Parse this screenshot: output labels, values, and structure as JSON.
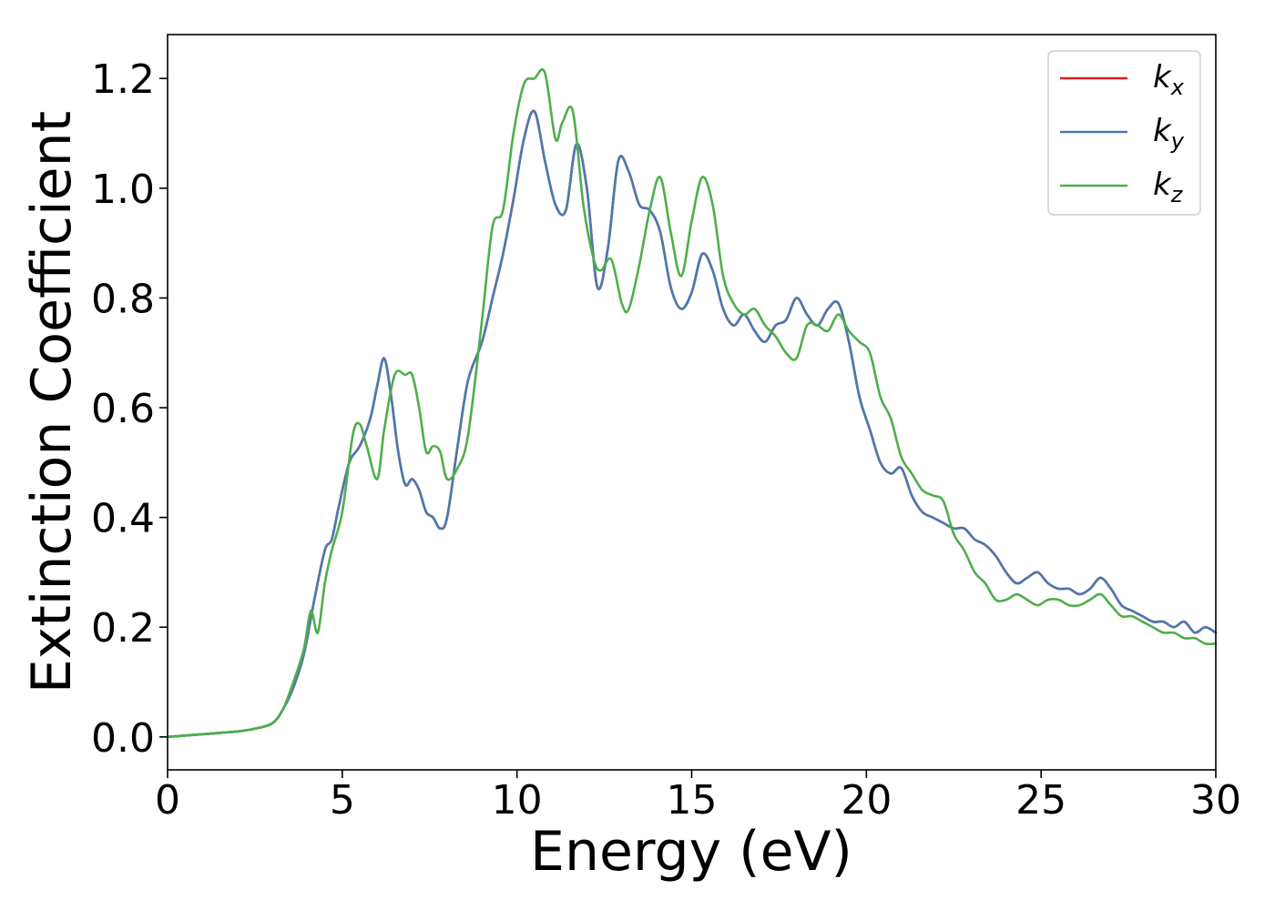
{
  "chart_data": {
    "type": "line",
    "title": "",
    "xlabel": "Energy (eV)",
    "ylabel": "Extinction Coefficient",
    "xlim": [
      0,
      30
    ],
    "ylim": [
      -0.06,
      1.28
    ],
    "xticks": [
      0,
      5,
      10,
      15,
      20,
      25,
      30
    ],
    "xtick_labels": [
      "0",
      "5",
      "10",
      "15",
      "20",
      "25",
      "30"
    ],
    "yticks": [
      0.0,
      0.2,
      0.4,
      0.6,
      0.8,
      1.0,
      1.2
    ],
    "ytick_labels": [
      "0.0",
      "0.2",
      "0.4",
      "0.6",
      "0.8",
      "1.0",
      "1.2"
    ],
    "grid": false,
    "legend_position": "top-right",
    "series": [
      {
        "name": "k_x",
        "label_base": "k",
        "label_sub": "x",
        "color": "#e41a1c",
        "x": [
          0,
          1,
          2,
          2.5,
          3,
          3.3,
          3.6,
          3.9,
          4.2,
          4.5,
          4.7,
          4.9,
          5.2,
          5.5,
          5.8,
          6.0,
          6.2,
          6.4,
          6.6,
          6.8,
          7.0,
          7.2,
          7.4,
          7.6,
          7.8,
          8.0,
          8.3,
          8.6,
          9.0,
          9.3,
          9.6,
          9.9,
          10.2,
          10.5,
          10.8,
          11.1,
          11.4,
          11.7,
          12.0,
          12.3,
          12.6,
          12.9,
          13.2,
          13.5,
          13.8,
          14.1,
          14.4,
          14.7,
          15.0,
          15.3,
          15.6,
          15.9,
          16.2,
          16.5,
          16.8,
          17.1,
          17.4,
          17.7,
          18.0,
          18.3,
          18.6,
          18.9,
          19.2,
          19.5,
          19.8,
          20.1,
          20.4,
          20.7,
          21.0,
          21.3,
          21.6,
          21.9,
          22.2,
          22.5,
          22.8,
          23.1,
          23.4,
          23.7,
          24.0,
          24.3,
          24.6,
          24.9,
          25.2,
          25.5,
          25.8,
          26.1,
          26.4,
          26.7,
          27.0,
          27.3,
          27.6,
          27.9,
          28.2,
          28.5,
          28.8,
          29.1,
          29.4,
          29.7,
          30.0
        ],
        "y": [
          0.0,
          0.005,
          0.01,
          0.015,
          0.025,
          0.05,
          0.09,
          0.15,
          0.25,
          0.34,
          0.36,
          0.42,
          0.5,
          0.53,
          0.58,
          0.64,
          0.69,
          0.62,
          0.52,
          0.46,
          0.47,
          0.45,
          0.41,
          0.4,
          0.38,
          0.4,
          0.53,
          0.65,
          0.72,
          0.8,
          0.88,
          0.98,
          1.09,
          1.14,
          1.05,
          0.97,
          0.96,
          1.08,
          1.0,
          0.82,
          0.89,
          1.05,
          1.03,
          0.97,
          0.96,
          0.92,
          0.82,
          0.78,
          0.81,
          0.88,
          0.85,
          0.78,
          0.75,
          0.77,
          0.74,
          0.72,
          0.75,
          0.76,
          0.8,
          0.77,
          0.75,
          0.78,
          0.79,
          0.72,
          0.62,
          0.56,
          0.5,
          0.48,
          0.49,
          0.44,
          0.41,
          0.4,
          0.39,
          0.38,
          0.38,
          0.36,
          0.35,
          0.33,
          0.3,
          0.28,
          0.29,
          0.3,
          0.28,
          0.27,
          0.27,
          0.26,
          0.27,
          0.29,
          0.27,
          0.24,
          0.23,
          0.22,
          0.21,
          0.21,
          0.2,
          0.21,
          0.19,
          0.2,
          0.19
        ]
      },
      {
        "name": "k_y",
        "label_base": "k",
        "label_sub": "y",
        "color": "#4a7ab0",
        "x": [
          0,
          1,
          2,
          2.5,
          3,
          3.3,
          3.6,
          3.9,
          4.2,
          4.5,
          4.7,
          4.9,
          5.2,
          5.5,
          5.8,
          6.0,
          6.2,
          6.4,
          6.6,
          6.8,
          7.0,
          7.2,
          7.4,
          7.6,
          7.8,
          8.0,
          8.3,
          8.6,
          9.0,
          9.3,
          9.6,
          9.9,
          10.2,
          10.5,
          10.8,
          11.1,
          11.4,
          11.7,
          12.0,
          12.3,
          12.6,
          12.9,
          13.2,
          13.5,
          13.8,
          14.1,
          14.4,
          14.7,
          15.0,
          15.3,
          15.6,
          15.9,
          16.2,
          16.5,
          16.8,
          17.1,
          17.4,
          17.7,
          18.0,
          18.3,
          18.6,
          18.9,
          19.2,
          19.5,
          19.8,
          20.1,
          20.4,
          20.7,
          21.0,
          21.3,
          21.6,
          21.9,
          22.2,
          22.5,
          22.8,
          23.1,
          23.4,
          23.7,
          24.0,
          24.3,
          24.6,
          24.9,
          25.2,
          25.5,
          25.8,
          26.1,
          26.4,
          26.7,
          27.0,
          27.3,
          27.6,
          27.9,
          28.2,
          28.5,
          28.8,
          29.1,
          29.4,
          29.7,
          30.0
        ],
        "y": [
          0.0,
          0.005,
          0.01,
          0.015,
          0.025,
          0.05,
          0.09,
          0.15,
          0.25,
          0.34,
          0.36,
          0.42,
          0.5,
          0.53,
          0.58,
          0.64,
          0.69,
          0.62,
          0.52,
          0.46,
          0.47,
          0.45,
          0.41,
          0.4,
          0.38,
          0.4,
          0.53,
          0.65,
          0.72,
          0.8,
          0.88,
          0.98,
          1.09,
          1.14,
          1.05,
          0.97,
          0.96,
          1.08,
          1.0,
          0.82,
          0.89,
          1.05,
          1.03,
          0.97,
          0.96,
          0.92,
          0.82,
          0.78,
          0.81,
          0.88,
          0.85,
          0.78,
          0.75,
          0.77,
          0.74,
          0.72,
          0.75,
          0.76,
          0.8,
          0.77,
          0.75,
          0.78,
          0.79,
          0.72,
          0.62,
          0.56,
          0.5,
          0.48,
          0.49,
          0.44,
          0.41,
          0.4,
          0.39,
          0.38,
          0.38,
          0.36,
          0.35,
          0.33,
          0.3,
          0.28,
          0.29,
          0.3,
          0.28,
          0.27,
          0.27,
          0.26,
          0.27,
          0.29,
          0.27,
          0.24,
          0.23,
          0.22,
          0.21,
          0.21,
          0.2,
          0.21,
          0.19,
          0.2,
          0.19
        ]
      },
      {
        "name": "k_z",
        "label_base": "k",
        "label_sub": "z",
        "color": "#4daf4a",
        "x": [
          0,
          1,
          2,
          2.5,
          3,
          3.3,
          3.6,
          3.9,
          4.1,
          4.3,
          4.5,
          4.7,
          5.0,
          5.3,
          5.5,
          5.7,
          6.0,
          6.2,
          6.5,
          6.8,
          7.0,
          7.2,
          7.4,
          7.6,
          7.8,
          8.0,
          8.3,
          8.6,
          9.0,
          9.3,
          9.6,
          9.9,
          10.2,
          10.5,
          10.8,
          11.1,
          11.3,
          11.6,
          11.9,
          12.2,
          12.4,
          12.7,
          13.0,
          13.2,
          13.5,
          13.8,
          14.1,
          14.4,
          14.7,
          15.0,
          15.3,
          15.6,
          15.9,
          16.2,
          16.5,
          16.8,
          17.1,
          17.4,
          17.7,
          18.0,
          18.3,
          18.6,
          18.9,
          19.2,
          19.5,
          19.8,
          20.1,
          20.4,
          20.7,
          21.0,
          21.3,
          21.6,
          21.9,
          22.2,
          22.5,
          22.8,
          23.1,
          23.4,
          23.7,
          24.0,
          24.3,
          24.6,
          24.9,
          25.2,
          25.5,
          25.8,
          26.1,
          26.4,
          26.7,
          27.0,
          27.3,
          27.6,
          27.9,
          28.2,
          28.5,
          28.8,
          29.1,
          29.4,
          29.7,
          30.0
        ],
        "y": [
          0.0,
          0.005,
          0.01,
          0.015,
          0.025,
          0.05,
          0.1,
          0.16,
          0.23,
          0.19,
          0.28,
          0.34,
          0.41,
          0.55,
          0.57,
          0.53,
          0.47,
          0.56,
          0.66,
          0.66,
          0.66,
          0.6,
          0.52,
          0.53,
          0.52,
          0.47,
          0.49,
          0.55,
          0.76,
          0.93,
          0.96,
          1.1,
          1.19,
          1.2,
          1.21,
          1.09,
          1.12,
          1.14,
          0.97,
          0.87,
          0.85,
          0.87,
          0.79,
          0.78,
          0.86,
          0.96,
          1.02,
          0.92,
          0.84,
          0.94,
          1.02,
          0.97,
          0.84,
          0.79,
          0.77,
          0.78,
          0.75,
          0.73,
          0.7,
          0.69,
          0.75,
          0.75,
          0.74,
          0.77,
          0.74,
          0.72,
          0.7,
          0.62,
          0.58,
          0.51,
          0.48,
          0.45,
          0.44,
          0.43,
          0.37,
          0.34,
          0.3,
          0.28,
          0.25,
          0.25,
          0.26,
          0.25,
          0.24,
          0.25,
          0.25,
          0.24,
          0.24,
          0.25,
          0.26,
          0.24,
          0.22,
          0.22,
          0.21,
          0.2,
          0.19,
          0.19,
          0.18,
          0.18,
          0.17,
          0.17
        ]
      }
    ]
  }
}
